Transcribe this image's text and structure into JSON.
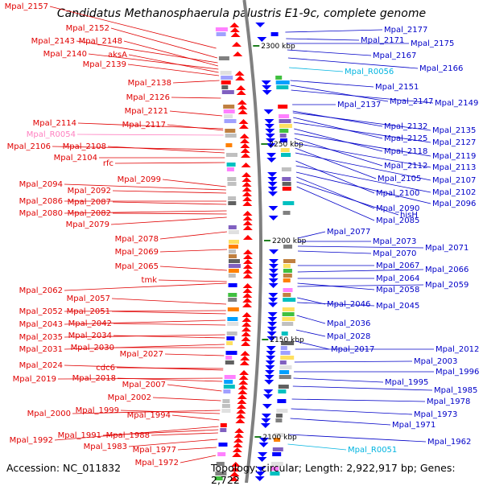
{
  "title": "Candidatus Methanosphaerula palustris E1-9c, complete genome",
  "accession": "Accession: NC_011832",
  "topology": "Topology: circular; Length: 2,922,917 bp; Genes: 2,722",
  "colors": {
    "left_label": "#e00000",
    "right_label": "#0000c8",
    "rna_left": "#ff80c0",
    "rna_right": "#00b4e0",
    "backbone": "#808080",
    "tick": "#208020"
  },
  "kbp_marks": [
    "2300 kbp",
    "2250 kbp",
    "2200 kbp",
    "2150 kbp",
    "2100 kbp"
  ],
  "left_labels": [
    "Mpal_2157",
    "Mpal_2152",
    "Mpal_2143",
    "Mpal_2148",
    "Mpal_2140",
    "aksA",
    "Mpal_2139",
    "Mpal_2138",
    "Mpal_2126",
    "Mpal_2121",
    "Mpal_2114",
    "Mpal_2117",
    "Mpal_R0054",
    "Mpal_2106",
    "Mpal_2108",
    "Mpal_2104",
    "rfc",
    "Mpal_2099",
    "Mpal_2094",
    "Mpal_2092",
    "Mpal_2086",
    "Mpal_2087",
    "Mpal_2080",
    "Mpal_2082",
    "Mpal_2079",
    "Mpal_2078",
    "Mpal_2069",
    "Mpal_2065",
    "tmk",
    "Mpal_2062",
    "Mpal_2057",
    "Mpal_2052",
    "Mpal_2051",
    "Mpal_2043",
    "Mpal_2042",
    "Mpal_2035",
    "Mpal_2034",
    "Mpal_2031",
    "Mpal_2030",
    "Mpal_2027",
    "Mpal_2024",
    "cdc6",
    "Mpal_2019",
    "Mpal_2018",
    "Mpal_2007",
    "Mpal_2002",
    "Mpal_2000",
    "Mpal_1999",
    "Mpal_1994",
    "Mpal_1992",
    "Mpal_1991",
    "Mpal_1988",
    "Mpal_1983",
    "Mpal_1977",
    "Mpal_1972"
  ],
  "right_labels": [
    "Mpal_2177",
    "Mpal_2171",
    "Mpal_2175",
    "Mpal_2167",
    "Mpal_2166",
    "Mpal_R0056",
    "Mpal_2151",
    "Mpal_2147",
    "Mpal_2149",
    "Mpal_2137",
    "Mpal_2132",
    "Mpal_2135",
    "Mpal_2125",
    "Mpal_2127",
    "Mpal_2118",
    "Mpal_2119",
    "Mpal_2112",
    "Mpal_2113",
    "Mpal_2105",
    "Mpal_2107",
    "Mpal_2100",
    "Mpal_2102",
    "Mpal_2096",
    "Mpal_2090",
    "hisH",
    "Mpal_2085",
    "Mpal_2077",
    "Mpal_2073",
    "Mpal_2071",
    "Mpal_2070",
    "Mpal_2067",
    "Mpal_2066",
    "Mpal_2064",
    "Mpal_2058",
    "Mpal_2059",
    "Mpal_2046",
    "Mpal_2045",
    "Mpal_2036",
    "Mpal_2028",
    "Mpal_2017",
    "Mpal_2012",
    "Mpal_2003",
    "Mpal_1996",
    "Mpal_1995",
    "Mpal_1985",
    "Mpal_1978",
    "Mpal_1973",
    "Mpal_1971",
    "Mpal_1962",
    "Mpal_R0051"
  ]
}
